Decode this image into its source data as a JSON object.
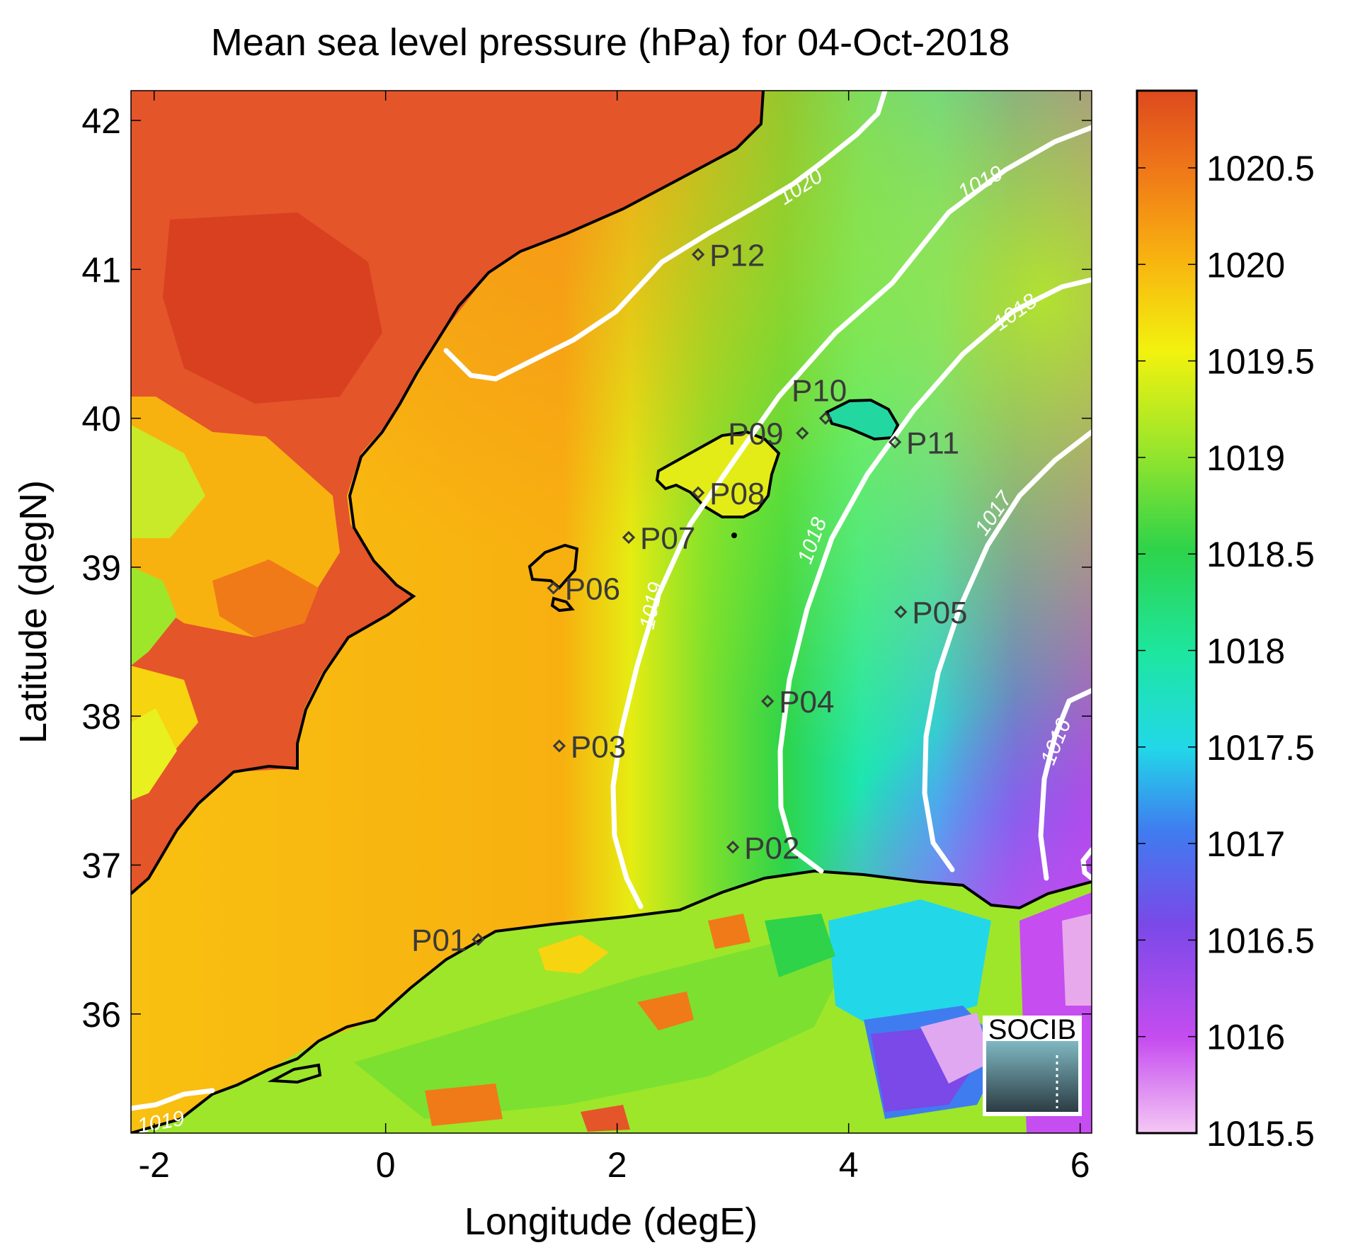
{
  "chart_data": {
    "type": "heatmap",
    "title": "Mean sea level pressure (hPa) for 04-Oct-2018",
    "xlabel": "Longitude (degE)",
    "ylabel": "Latitude (degN)",
    "xlim": [
      -2.2,
      6.1
    ],
    "ylim": [
      35.2,
      42.2
    ],
    "x_ticks": [
      "-2",
      "0",
      "2",
      "4",
      "6"
    ],
    "y_ticks": [
      "36",
      "37",
      "38",
      "39",
      "40",
      "41",
      "42"
    ],
    "colorbar": {
      "range": [
        1015.5,
        1020.9
      ],
      "ticks": [
        "1015.5",
        "1016",
        "1016.5",
        "1017",
        "1017.5",
        "1018",
        "1018.5",
        "1019",
        "1019.5",
        "1020",
        "1020.5"
      ],
      "colors": [
        "#f4c8f4",
        "#c64df0",
        "#7a49e8",
        "#3f7cf0",
        "#22d8e8",
        "#1de6a0",
        "#2ed34a",
        "#9ee62a",
        "#f2f20e",
        "#f8b210",
        "#dd4a1e"
      ]
    },
    "contour_levels": [
      "1016",
      "1017",
      "1018",
      "1019",
      "1020"
    ],
    "stations": [
      {
        "id": "P01",
        "lon": 0.8,
        "lat": 36.5
      },
      {
        "id": "P02",
        "lon": 3.0,
        "lat": 37.12
      },
      {
        "id": "P03",
        "lon": 1.5,
        "lat": 37.8
      },
      {
        "id": "P04",
        "lon": 3.3,
        "lat": 38.1
      },
      {
        "id": "P05",
        "lon": 4.45,
        "lat": 38.7
      },
      {
        "id": "P06",
        "lon": 1.45,
        "lat": 38.86
      },
      {
        "id": "P07",
        "lon": 2.1,
        "lat": 39.2
      },
      {
        "id": "P08",
        "lon": 2.7,
        "lat": 39.5
      },
      {
        "id": "P09",
        "lon": 3.6,
        "lat": 39.9
      },
      {
        "id": "P10",
        "lon": 3.8,
        "lat": 40.0
      },
      {
        "id": "P11",
        "lon": 4.4,
        "lat": 39.84
      },
      {
        "id": "P12",
        "lon": 2.7,
        "lat": 41.1
      }
    ],
    "logo": "SOCIB"
  },
  "colors": {
    "land_high": "#dd4a1e",
    "land_mid": "#f8b210",
    "sea_west": "#f8c010",
    "contour": "#ffffff",
    "coastline": "#000000"
  }
}
